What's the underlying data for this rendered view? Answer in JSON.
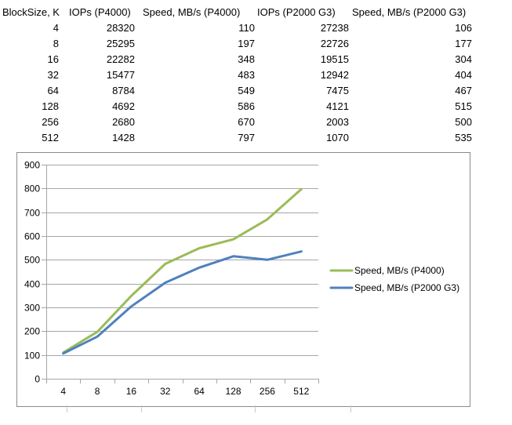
{
  "table": {
    "headers": [
      "BlockSize, K",
      "IOPs (P4000)",
      "Speed, MB/s (P4000)",
      "IOPs (P2000 G3)",
      "Speed, MB/s (P2000 G3)"
    ],
    "rows": [
      [
        "4",
        "28320",
        "110",
        "27238",
        "106"
      ],
      [
        "8",
        "25295",
        "197",
        "22726",
        "177"
      ],
      [
        "16",
        "22282",
        "348",
        "19515",
        "304"
      ],
      [
        "32",
        "15477",
        "483",
        "12942",
        "404"
      ],
      [
        "64",
        "8784",
        "549",
        "7475",
        "467"
      ],
      [
        "128",
        "4692",
        "586",
        "4121",
        "515"
      ],
      [
        "256",
        "2680",
        "670",
        "2003",
        "500"
      ],
      [
        "512",
        "1428",
        "797",
        "1070",
        "535"
      ]
    ]
  },
  "chart_data": {
    "type": "line",
    "title": "",
    "xlabel": "",
    "ylabel": "",
    "categories": [
      "4",
      "8",
      "16",
      "32",
      "64",
      "128",
      "256",
      "512"
    ],
    "series": [
      {
        "name": "Speed, MB/s (P4000)",
        "color": "#9bbb59",
        "values": [
          110,
          197,
          348,
          483,
          549,
          586,
          670,
          797
        ]
      },
      {
        "name": "Speed, MB/s (P2000 G3)",
        "color": "#4f81bd",
        "values": [
          106,
          177,
          304,
          404,
          467,
          515,
          500,
          535
        ]
      }
    ],
    "ylim": [
      0,
      900
    ],
    "ytick_labels": [
      "0",
      "100",
      "200",
      "300",
      "400",
      "500",
      "600",
      "700",
      "800",
      "900"
    ],
    "grid": true,
    "legend_position": "right"
  },
  "colors": {
    "grid_line": "#a6a6a6",
    "axis_line": "#a6a6a6",
    "chart_border": "#8b8b8b",
    "text": "#000000",
    "background": "#ffffff"
  }
}
